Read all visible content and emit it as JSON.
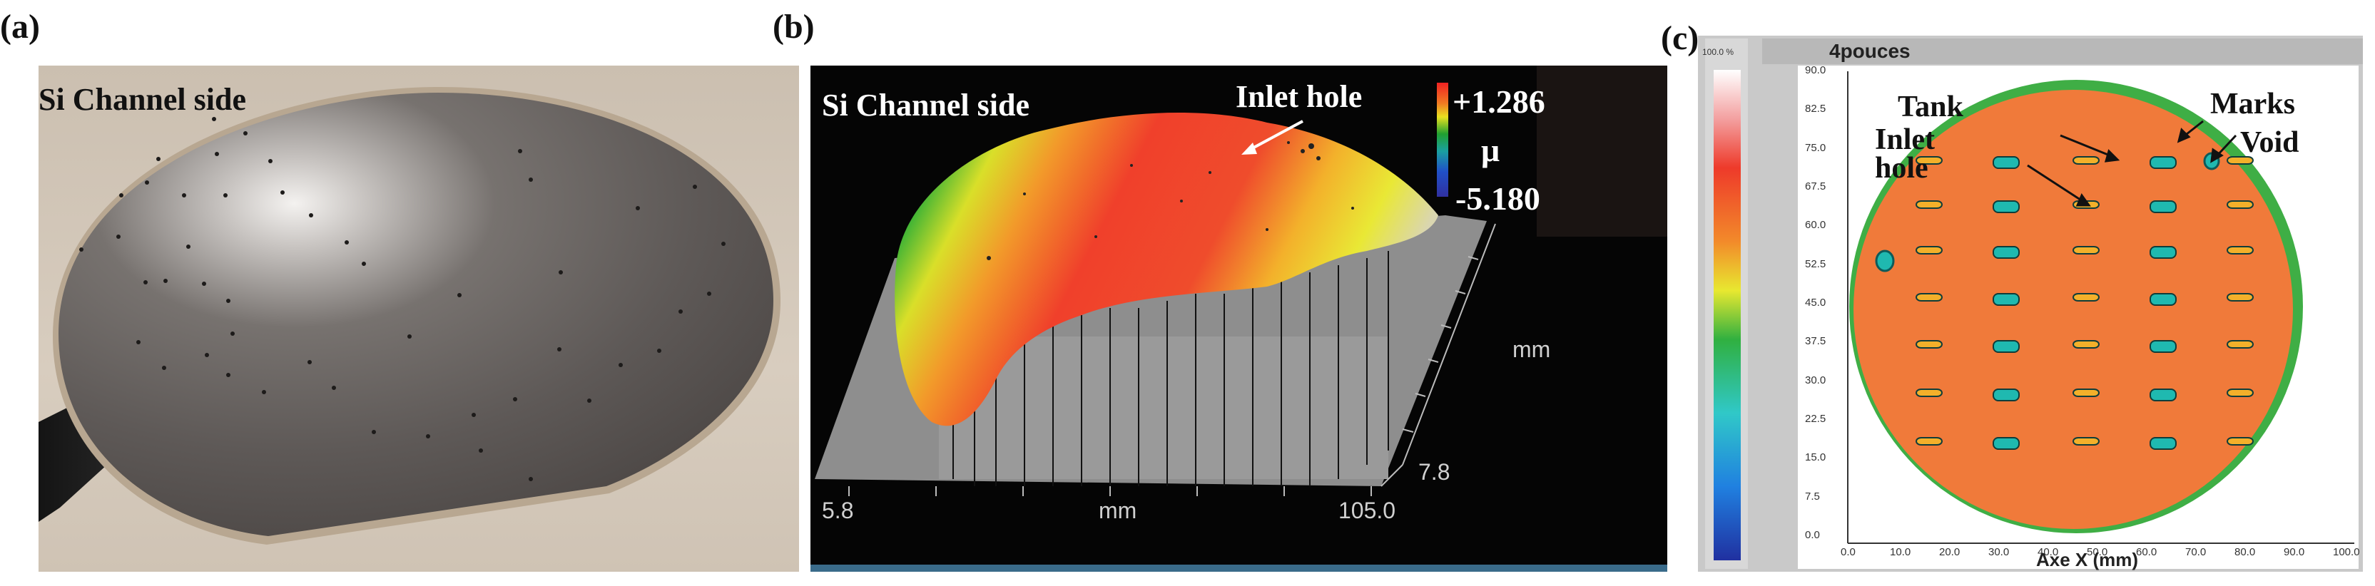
{
  "panels": {
    "a": {
      "label": "(a)",
      "caption": "Si Channel side"
    },
    "b": {
      "label": "(b)",
      "caption": "Si Channel side",
      "annotation": "Inlet hole",
      "scale_max": "+1.286",
      "scale_unit": "μ",
      "scale_min": "-5.180",
      "x_start": "5.8",
      "x_end": "105.0",
      "x_unit": "mm",
      "y_unit": "mm",
      "y_tick": "7.8"
    },
    "c": {
      "label": "(c)",
      "title": "4pouces",
      "colorbar_top": "100.0 %",
      "annotations": {
        "tank": "Tank",
        "marks": "Marks",
        "inlet_hole": "Inlet\nhole",
        "void": "Void"
      },
      "y_ticks": [
        "90.0",
        "82.5",
        "75.0",
        "67.5",
        "60.0",
        "52.5",
        "45.0",
        "37.5",
        "30.0",
        "22.5",
        "15.0",
        "7.5",
        "0.0"
      ],
      "x_ticks": [
        "0.0",
        "10.0",
        "20.0",
        "30.0",
        "40.0",
        "50.0",
        "60.0",
        "70.0",
        "80.0",
        "90.0",
        "100.0"
      ],
      "x_axis_label": "Axe X (mm)",
      "colors": {
        "wafer": "#f07a3a",
        "rim": "#3fae45",
        "tank": "#1fb9b0"
      }
    }
  }
}
